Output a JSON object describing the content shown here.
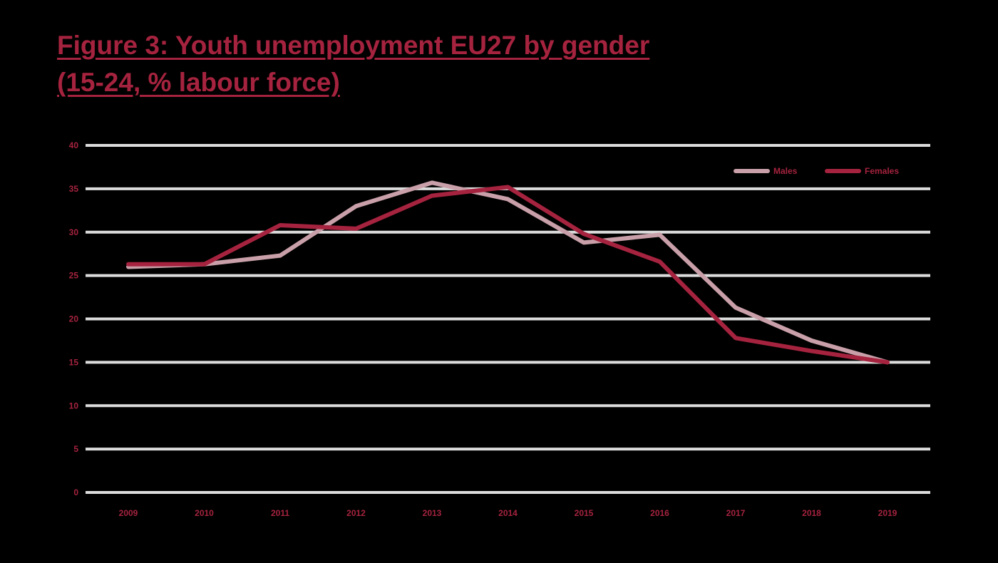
{
  "title": {
    "line1": "Figure 3: Youth unemployment EU27 by gender",
    "line2": "(15-24, % labour force)"
  },
  "colors": {
    "background": "#000000",
    "accent": "#a5233e",
    "males": "#c9a0a9",
    "females": "#a5233e",
    "grid": "#dcdcdc"
  },
  "chart_data": {
    "type": "line",
    "categories": [
      "2009",
      "2010",
      "2011",
      "2012",
      "2013",
      "2014",
      "2015",
      "2016",
      "2017",
      "2018",
      "2019"
    ],
    "y_ticks": [
      "0",
      "5",
      "10",
      "15",
      "20",
      "25",
      "30",
      "35",
      "40"
    ],
    "ylim": [
      0,
      40
    ],
    "grid": true,
    "legend_position": "top-right",
    "xlabel": "",
    "ylabel": "",
    "series": [
      {
        "name": "Males",
        "color": "#c9a0a9",
        "values": [
          26.0,
          26.3,
          27.3,
          33.0,
          35.7,
          33.8,
          28.8,
          29.7,
          21.3,
          17.5,
          15.0
        ]
      },
      {
        "name": "Females",
        "color": "#a5233e",
        "values": [
          26.3,
          26.3,
          30.8,
          30.4,
          34.2,
          35.2,
          29.8,
          26.6,
          17.8,
          16.3,
          15.0
        ]
      }
    ]
  }
}
